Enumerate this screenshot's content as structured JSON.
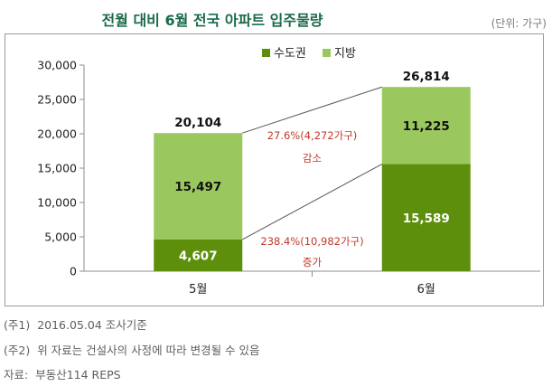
{
  "title": "전월 대비 6월 전국 아파트 입주물량",
  "unit_label": "(단위: 가구)",
  "colors": {
    "capital": "#5e8f0c",
    "regional": "#9bc85e",
    "annotation": "#c0392b",
    "title": "#1b6b4a"
  },
  "chart_data": {
    "type": "bar",
    "stacked": true,
    "categories": [
      "5월",
      "6월"
    ],
    "series": [
      {
        "name": "수도권",
        "values": [
          4607,
          15589
        ]
      },
      {
        "name": "지방",
        "values": [
          15497,
          11225
        ]
      }
    ],
    "totals": [
      "20,104",
      "26,814"
    ],
    "segment_labels": {
      "수도권": [
        "4,607",
        "15,589"
      ],
      "지방": [
        "15,497",
        "11,225"
      ]
    },
    "ylim": [
      0,
      30000
    ],
    "yticks": [
      "0",
      "5,000",
      "10,000",
      "15,000",
      "20,000",
      "25,000",
      "30,000"
    ],
    "ytick_values": [
      0,
      5000,
      10000,
      15000,
      20000,
      25000,
      30000
    ],
    "legend_position": "top",
    "grid": false,
    "annotations": [
      {
        "text": "27.6%(4,272가구)",
        "subtext": "감소",
        "refers_to": "지방"
      },
      {
        "text": "238.4%(10,982가구)",
        "subtext": "증가",
        "refers_to": "수도권"
      }
    ]
  },
  "notes": [
    {
      "label": "(주1)",
      "text": "2016.05.04  조사기준"
    },
    {
      "label": "(주2)",
      "text": "위 자료는 건설사의 사정에 따라 변경될 수 있음"
    },
    {
      "label": "자료:",
      "text": "부동산114  REPS"
    }
  ]
}
